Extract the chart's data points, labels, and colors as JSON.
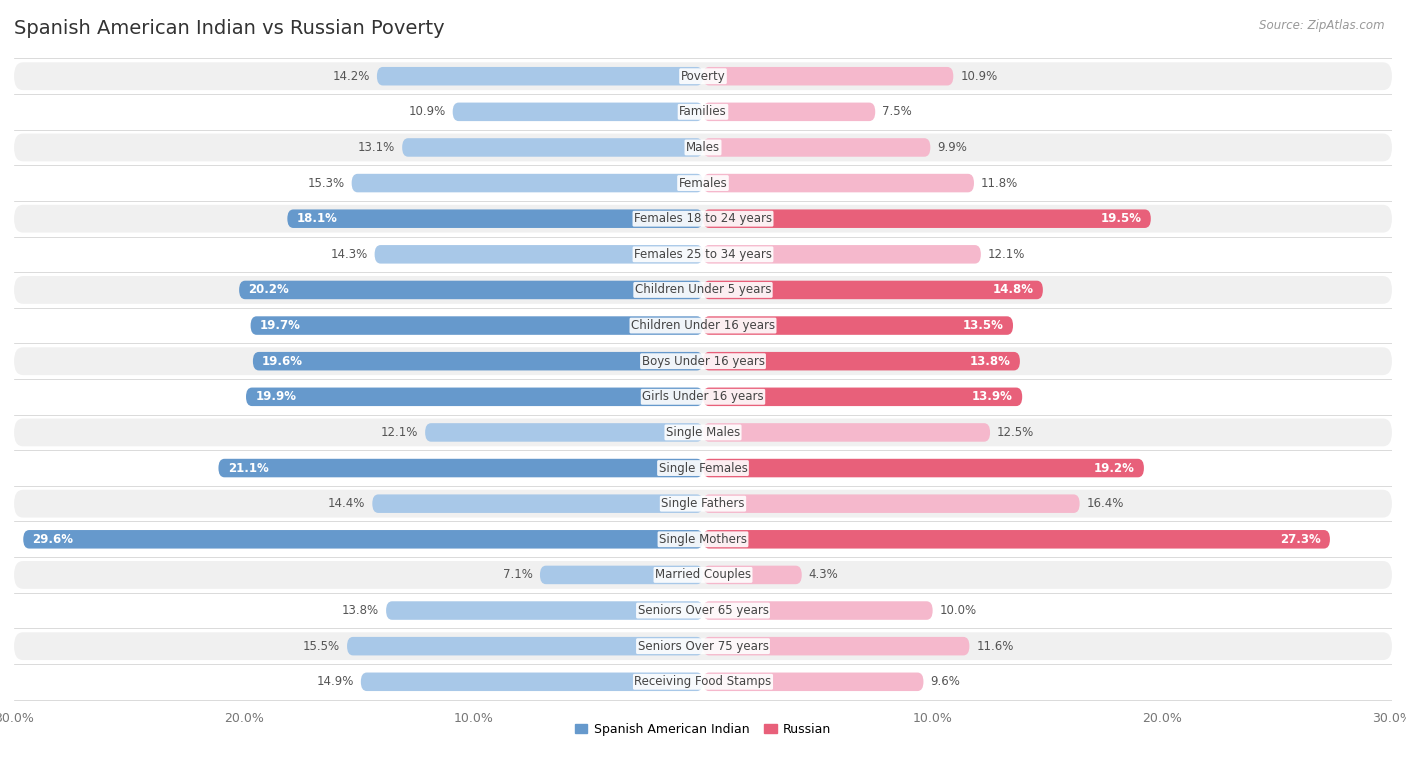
{
  "title": "Spanish American Indian vs Russian Poverty",
  "source": "Source: ZipAtlas.com",
  "categories": [
    "Poverty",
    "Families",
    "Males",
    "Females",
    "Females 18 to 24 years",
    "Females 25 to 34 years",
    "Children Under 5 years",
    "Children Under 16 years",
    "Boys Under 16 years",
    "Girls Under 16 years",
    "Single Males",
    "Single Females",
    "Single Fathers",
    "Single Mothers",
    "Married Couples",
    "Seniors Over 65 years",
    "Seniors Over 75 years",
    "Receiving Food Stamps"
  ],
  "left_values": [
    14.2,
    10.9,
    13.1,
    15.3,
    18.1,
    14.3,
    20.2,
    19.7,
    19.6,
    19.9,
    12.1,
    21.1,
    14.4,
    29.6,
    7.1,
    13.8,
    15.5,
    14.9
  ],
  "right_values": [
    10.9,
    7.5,
    9.9,
    11.8,
    19.5,
    12.1,
    14.8,
    13.5,
    13.8,
    13.9,
    12.5,
    19.2,
    16.4,
    27.3,
    4.3,
    10.0,
    11.6,
    9.6
  ],
  "left_color_normal": "#a8c8e8",
  "right_color_normal": "#f5b8cc",
  "left_color_highlight": "#6699cc",
  "right_color_highlight": "#e8607a",
  "highlight_rows": [
    4,
    6,
    7,
    8,
    9,
    11,
    13
  ],
  "left_label": "Spanish American Indian",
  "right_label": "Russian",
  "axis_max": 30.0,
  "bg_color_odd": "#f0f0f0",
  "bg_color_even": "#ffffff",
  "title_fontsize": 14,
  "value_fontsize": 8.5,
  "category_fontsize": 8.5
}
